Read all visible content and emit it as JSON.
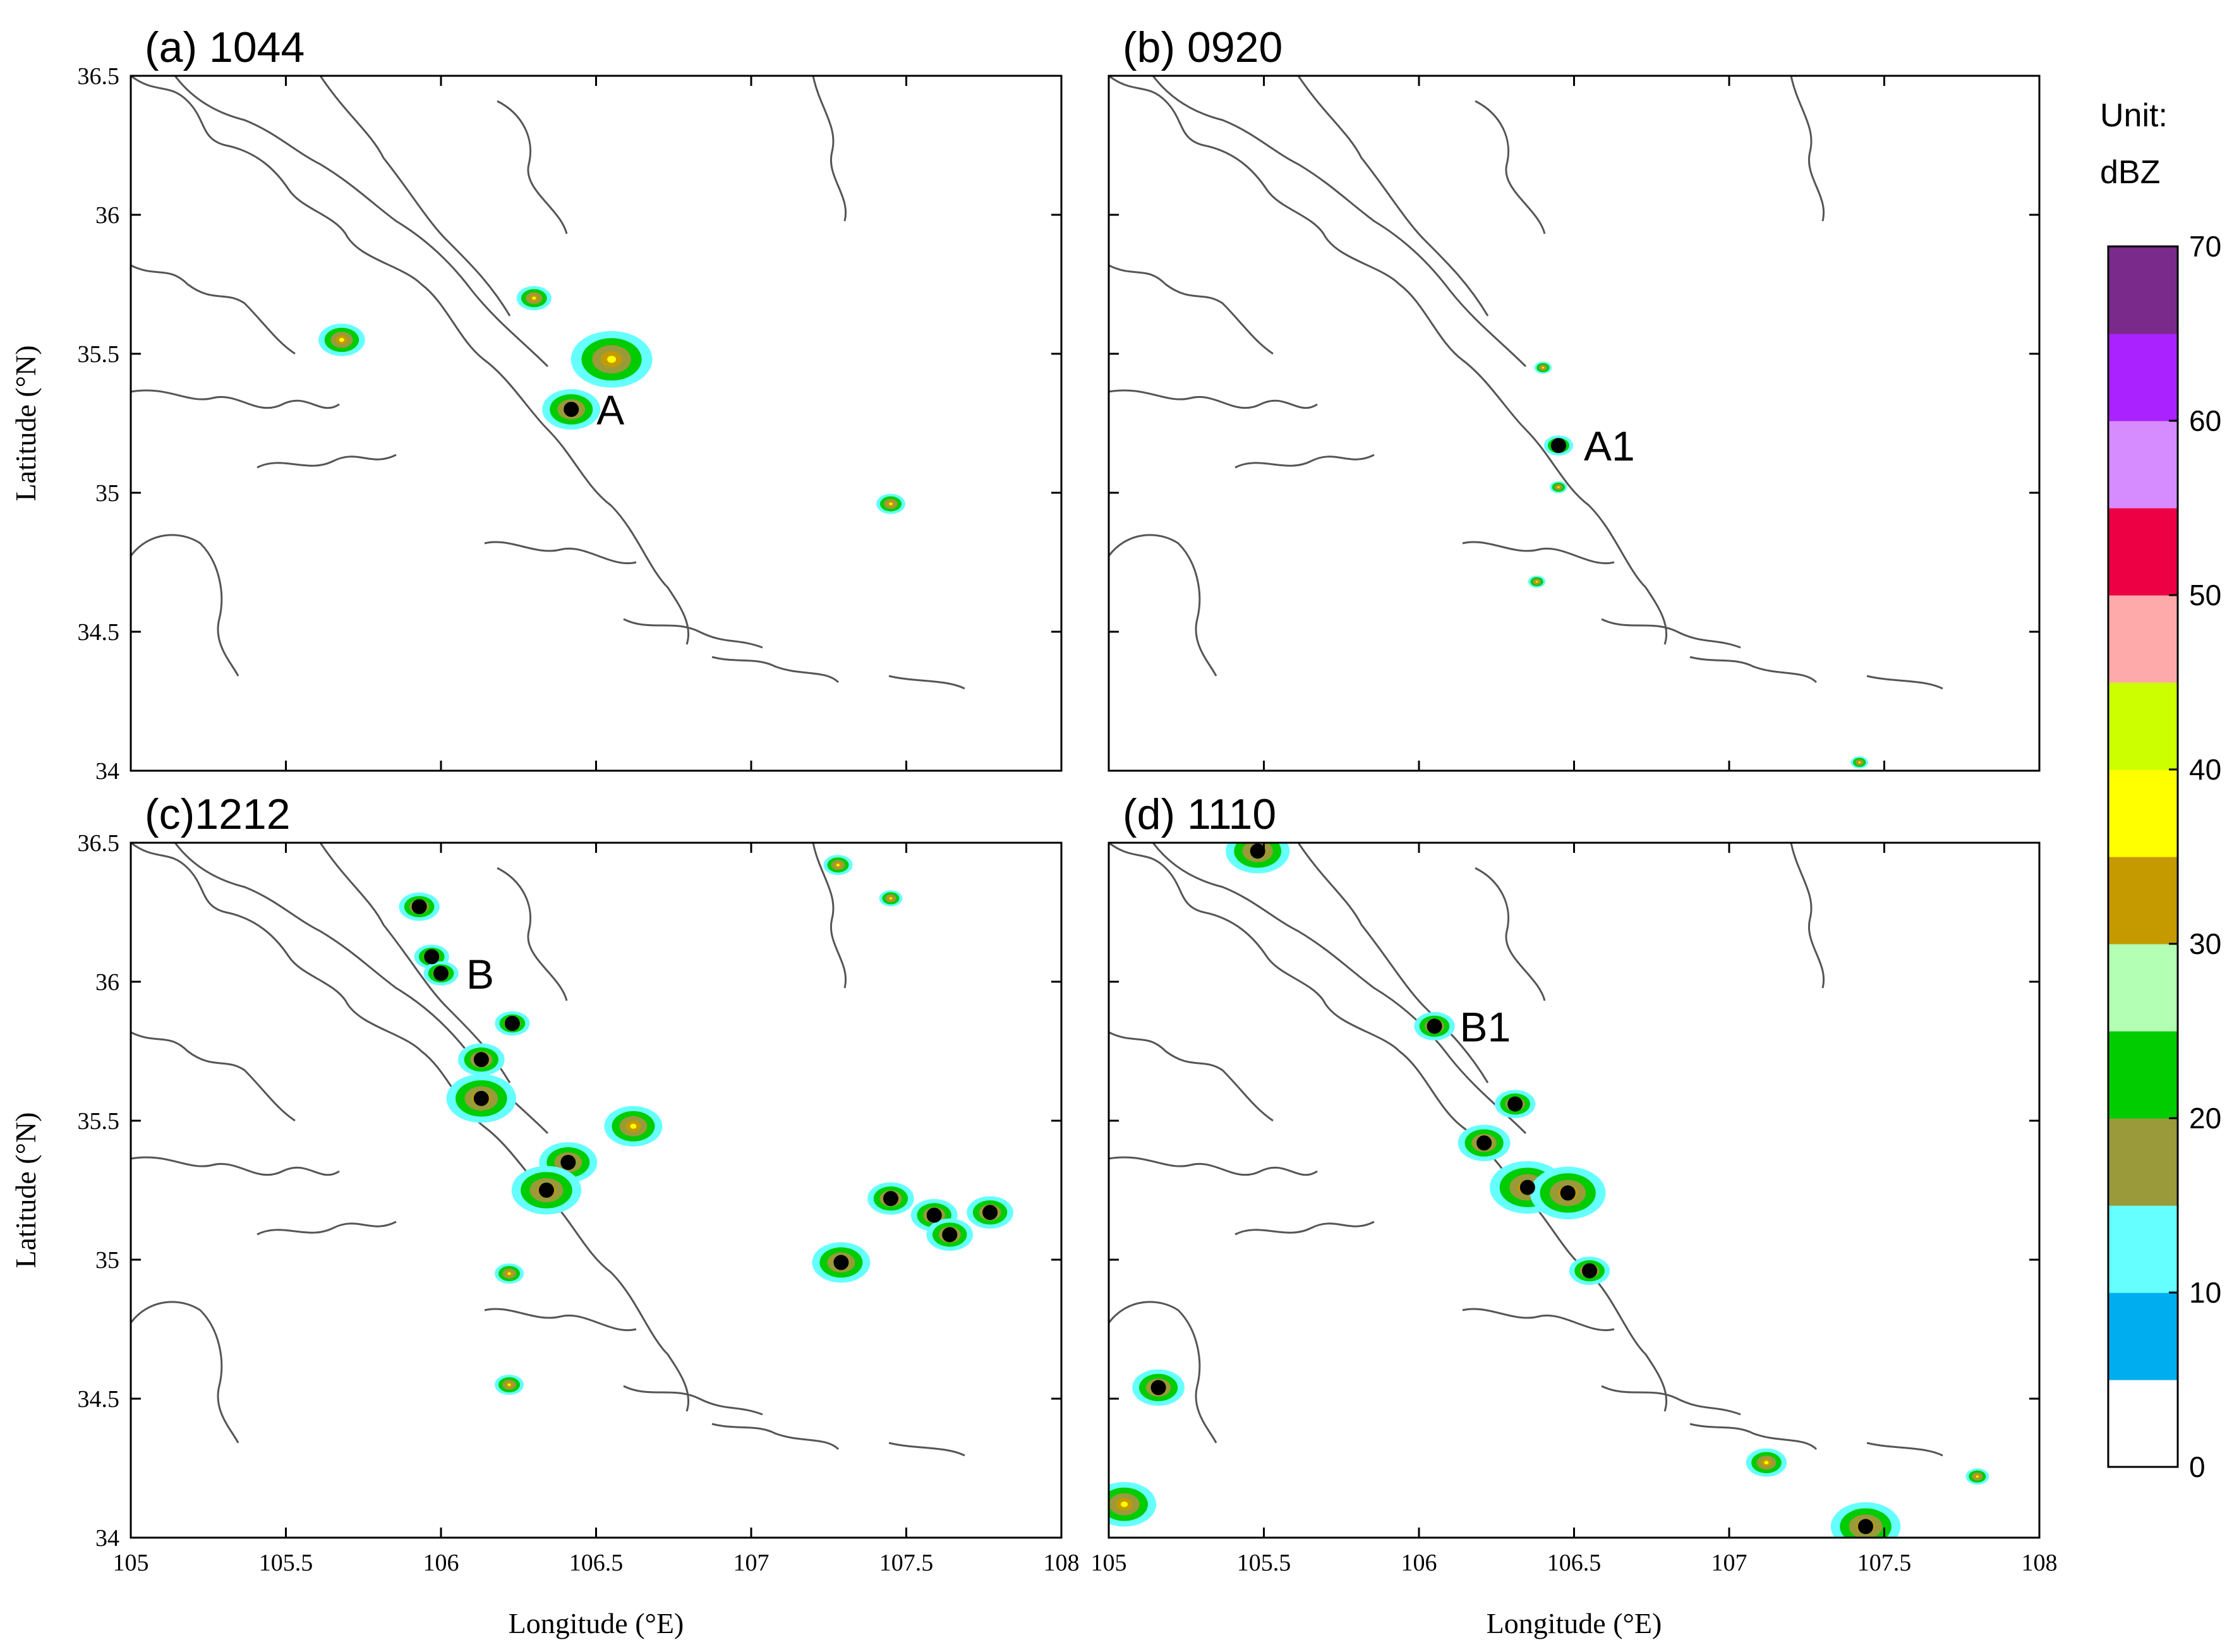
{
  "chart_data": {
    "type": "heatmap",
    "variable": "reflectivity",
    "colorbar": {
      "unit_label": "Unit:",
      "unit": "dBZ",
      "range": [
        0,
        70
      ],
      "tick_labels": [
        "0",
        "10",
        "20",
        "30",
        "40",
        "50",
        "60",
        "70"
      ],
      "colors": [
        "#ffffff",
        "#00aeef",
        "#66ffff",
        "#9a9a3a",
        "#00cc00",
        "#b3ffb3",
        "#c49a00",
        "#ffff00",
        "#ccff00",
        "#ffaaaa",
        "#ee0044",
        "#d68cff",
        "#aa22ff",
        "#7a2a8a"
      ]
    },
    "xlabel": "Longitude (°E)",
    "ylabel": "Latitude (°N)",
    "xlim": [
      105,
      108
    ],
    "ylim": [
      34,
      36.5
    ],
    "xticks": [
      "105",
      "105.5",
      "106",
      "106.5",
      "107",
      "107.5",
      "108"
    ],
    "yticks": [
      "34",
      "34.5",
      "35",
      "35.5",
      "36",
      "36.5"
    ],
    "panels": [
      {
        "title": "(a) 1044",
        "cells": [
          {
            "lon": 106.42,
            "lat": 35.3,
            "label": "A",
            "dot": true,
            "size": 1.0
          },
          {
            "lon": 106.55,
            "lat": 35.48,
            "size": 1.4
          },
          {
            "lon": 106.3,
            "lat": 35.7,
            "size": 0.6
          },
          {
            "lon": 105.68,
            "lat": 35.55,
            "size": 0.8
          },
          {
            "lon": 107.45,
            "lat": 34.96,
            "size": 0.5
          }
        ]
      },
      {
        "title": "(b) 0920",
        "cells": [
          {
            "lon": 106.45,
            "lat": 35.17,
            "label": "A1",
            "dot": true,
            "size": 0.5
          },
          {
            "lon": 106.4,
            "lat": 35.45,
            "size": 0.3
          },
          {
            "lon": 106.45,
            "lat": 35.02,
            "size": 0.3
          },
          {
            "lon": 106.38,
            "lat": 34.68,
            "size": 0.3
          },
          {
            "lon": 107.42,
            "lat": 34.03,
            "size": 0.3
          }
        ]
      },
      {
        "title": "(c)1212",
        "cells": [
          {
            "lon": 105.93,
            "lat": 36.27,
            "dot": true,
            "size": 0.7
          },
          {
            "lon": 105.97,
            "lat": 36.09,
            "dot": true,
            "size": 0.6
          },
          {
            "lon": 106.0,
            "lat": 36.03,
            "label": "B",
            "dot": true,
            "size": 0.6
          },
          {
            "lon": 106.23,
            "lat": 35.85,
            "dot": true,
            "size": 0.6
          },
          {
            "lon": 106.13,
            "lat": 35.72,
            "dot": true,
            "size": 0.8
          },
          {
            "lon": 106.13,
            "lat": 35.58,
            "dot": true,
            "size": 1.2
          },
          {
            "lon": 106.41,
            "lat": 35.35,
            "dot": true,
            "size": 1.0
          },
          {
            "lon": 106.34,
            "lat": 35.25,
            "dot": true,
            "size": 1.2
          },
          {
            "lon": 106.62,
            "lat": 35.48,
            "size": 1.0
          },
          {
            "lon": 107.45,
            "lat": 35.22,
            "dot": true,
            "size": 0.8
          },
          {
            "lon": 107.59,
            "lat": 35.16,
            "dot": true,
            "size": 0.8
          },
          {
            "lon": 107.64,
            "lat": 35.09,
            "dot": true,
            "size": 0.8
          },
          {
            "lon": 107.77,
            "lat": 35.17,
            "dot": true,
            "size": 0.8
          },
          {
            "lon": 107.29,
            "lat": 34.99,
            "dot": true,
            "size": 1.0
          },
          {
            "lon": 106.22,
            "lat": 34.95,
            "size": 0.5
          },
          {
            "lon": 106.22,
            "lat": 34.55,
            "size": 0.5
          },
          {
            "lon": 107.28,
            "lat": 36.42,
            "size": 0.5
          },
          {
            "lon": 107.45,
            "lat": 36.3,
            "size": 0.4
          }
        ]
      },
      {
        "title": "(d) 1110",
        "cells": [
          {
            "lon": 105.48,
            "lat": 36.47,
            "dot": true,
            "size": 1.1
          },
          {
            "lon": 106.05,
            "lat": 35.84,
            "label": "B1",
            "dot": true,
            "size": 0.7
          },
          {
            "lon": 106.31,
            "lat": 35.56,
            "dot": true,
            "size": 0.7
          },
          {
            "lon": 106.21,
            "lat": 35.42,
            "dot": true,
            "size": 0.9
          },
          {
            "lon": 106.35,
            "lat": 35.26,
            "dot": true,
            "size": 1.3
          },
          {
            "lon": 106.48,
            "lat": 35.24,
            "dot": true,
            "size": 1.3
          },
          {
            "lon": 106.55,
            "lat": 34.96,
            "dot": true,
            "size": 0.7
          },
          {
            "lon": 105.16,
            "lat": 34.54,
            "dot": true,
            "size": 0.9
          },
          {
            "lon": 107.44,
            "lat": 34.04,
            "dot": true,
            "size": 1.2
          },
          {
            "lon": 105.05,
            "lat": 34.12,
            "size": 1.1
          },
          {
            "lon": 107.12,
            "lat": 34.27,
            "size": 0.7
          },
          {
            "lon": 107.8,
            "lat": 34.22,
            "size": 0.4
          }
        ]
      }
    ]
  }
}
